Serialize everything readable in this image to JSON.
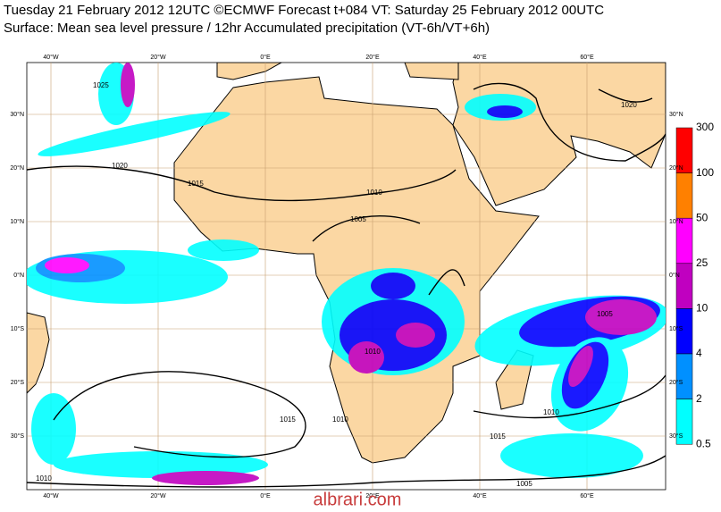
{
  "header": {
    "title": "Tuesday 21 February 2012 12UTC ©ECMWF Forecast t+084 VT: Saturday 25 February 2012 00UTC",
    "subtitle": "Surface: Mean sea level pressure / 12hr Accumulated precipitation (VT-6h/VT+6h)"
  },
  "map": {
    "longitude_labels": [
      "40°W",
      "20°W",
      "0°E",
      "20°E",
      "40°E",
      "60°E"
    ],
    "latitude_labels": [
      "30°N",
      "20°N",
      "10°N",
      "0°N",
      "10°S",
      "20°S",
      "30°S"
    ],
    "isobar_labels": [
      "1025",
      "1020",
      "1015",
      "1010",
      "1005",
      "1015",
      "1010",
      "1005",
      "1010",
      "1015",
      "1010",
      "1005",
      "1020",
      "1010"
    ]
  },
  "colorbar": {
    "levels": [
      300,
      100,
      50,
      25,
      10,
      4,
      2,
      0.5
    ],
    "colors": [
      "#ff0000",
      "#ff8000",
      "#ff00ff",
      "#c000c0",
      "#0000ff",
      "#0090ff",
      "#00ffff"
    ]
  },
  "watermark": "albrari.com"
}
